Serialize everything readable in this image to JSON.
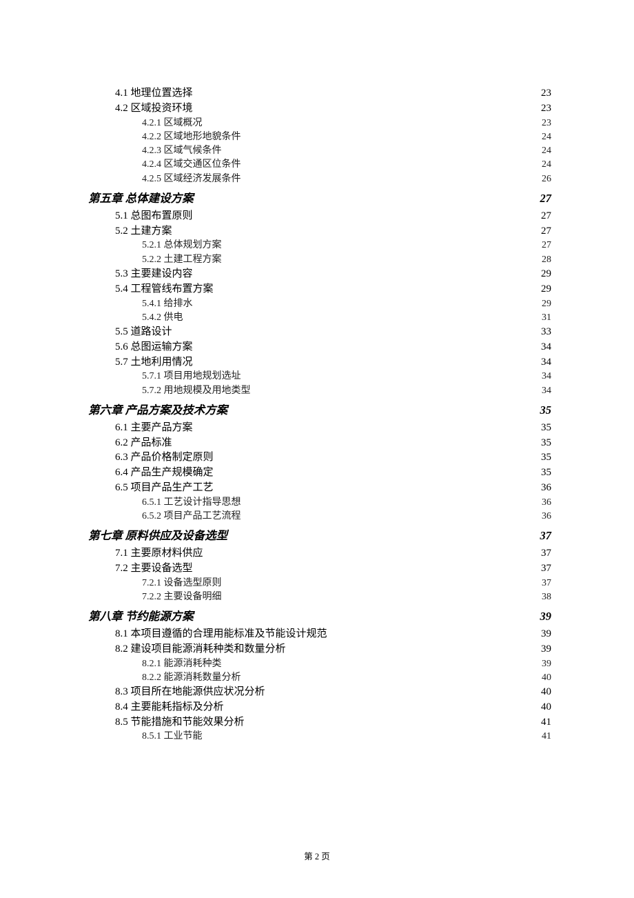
{
  "footer": "第 2 页",
  "background_color": "#ffffff",
  "text_color": "#000000",
  "font_family": "SimSun",
  "chapter_font_family": "KaiTi",
  "entries": [
    {
      "level": "section",
      "title": "4.1 地理位置选择",
      "page": "23"
    },
    {
      "level": "section",
      "title": "4.2 区域投资环境",
      "page": "23"
    },
    {
      "level": "subsection",
      "title": "4.2.1 区域概况",
      "page": "23"
    },
    {
      "level": "subsection",
      "title": "4.2.2 区域地形地貌条件",
      "page": "24"
    },
    {
      "level": "subsection",
      "title": "4.2.3 区域气候条件",
      "page": "24"
    },
    {
      "level": "subsection",
      "title": "4.2.4 区域交通区位条件",
      "page": "24"
    },
    {
      "level": "subsection",
      "title": "4.2.5 区域经济发展条件",
      "page": "26"
    },
    {
      "level": "chapter",
      "title": "第五章  总体建设方案",
      "page": "27"
    },
    {
      "level": "section",
      "title": "5.1 总图布置原则",
      "page": "27"
    },
    {
      "level": "section",
      "title": "5.2 土建方案",
      "page": "27"
    },
    {
      "level": "subsection",
      "title": "5.2.1 总体规划方案",
      "page": "27"
    },
    {
      "level": "subsection",
      "title": "5.2.2 土建工程方案",
      "page": "28"
    },
    {
      "level": "section",
      "title": "5.3 主要建设内容",
      "page": "29"
    },
    {
      "level": "section",
      "title": "5.4 工程管线布置方案",
      "page": "29"
    },
    {
      "level": "subsection",
      "title": "5.4.1 给排水",
      "page": "29"
    },
    {
      "level": "subsection",
      "title": "5.4.2 供电",
      "page": "31"
    },
    {
      "level": "section",
      "title": "5.5 道路设计",
      "page": "33"
    },
    {
      "level": "section",
      "title": "5.6 总图运输方案",
      "page": "34"
    },
    {
      "level": "section",
      "title": "5.7 土地利用情况",
      "page": "34"
    },
    {
      "level": "subsection",
      "title": "5.7.1 项目用地规划选址",
      "page": "34"
    },
    {
      "level": "subsection",
      "title": "5.7.2 用地规模及用地类型",
      "page": "34"
    },
    {
      "level": "chapter",
      "title": "第六章  产品方案及技术方案",
      "page": "35"
    },
    {
      "level": "section",
      "title": "6.1 主要产品方案",
      "page": "35"
    },
    {
      "level": "section",
      "title": "6.2 产品标准",
      "page": "35"
    },
    {
      "level": "section",
      "title": "6.3 产品价格制定原则",
      "page": "35"
    },
    {
      "level": "section",
      "title": "6.4 产品生产规模确定",
      "page": "35"
    },
    {
      "level": "section",
      "title": "6.5 项目产品生产工艺",
      "page": "36"
    },
    {
      "level": "subsection",
      "title": "6.5.1 工艺设计指导思想",
      "page": "36"
    },
    {
      "level": "subsection",
      "title": "6.5.2 项目产品工艺流程",
      "page": "36"
    },
    {
      "level": "chapter",
      "title": "第七章  原料供应及设备选型",
      "page": "37"
    },
    {
      "level": "section",
      "title": "7.1 主要原材料供应",
      "page": "37"
    },
    {
      "level": "section",
      "title": "7.2 主要设备选型",
      "page": "37"
    },
    {
      "level": "subsection",
      "title": "7.2.1 设备选型原则",
      "page": "37"
    },
    {
      "level": "subsection",
      "title": "7.2.2 主要设备明细",
      "page": "38"
    },
    {
      "level": "chapter",
      "title": "第八章  节约能源方案",
      "page": "39"
    },
    {
      "level": "section",
      "title": "8.1 本项目遵循的合理用能标准及节能设计规范",
      "page": "39"
    },
    {
      "level": "section",
      "title": "8.2 建设项目能源消耗种类和数量分析",
      "page": "39"
    },
    {
      "level": "subsection",
      "title": "8.2.1 能源消耗种类",
      "page": "39"
    },
    {
      "level": "subsection",
      "title": "8.2.2 能源消耗数量分析",
      "page": "40"
    },
    {
      "level": "section",
      "title": "8.3 项目所在地能源供应状况分析",
      "page": "40"
    },
    {
      "level": "section",
      "title": "8.4 主要能耗指标及分析",
      "page": "40"
    },
    {
      "level": "section",
      "title": "8.5 节能措施和节能效果分析",
      "page": "41"
    },
    {
      "level": "subsection",
      "title": "8.5.1 工业节能",
      "page": "41"
    }
  ]
}
